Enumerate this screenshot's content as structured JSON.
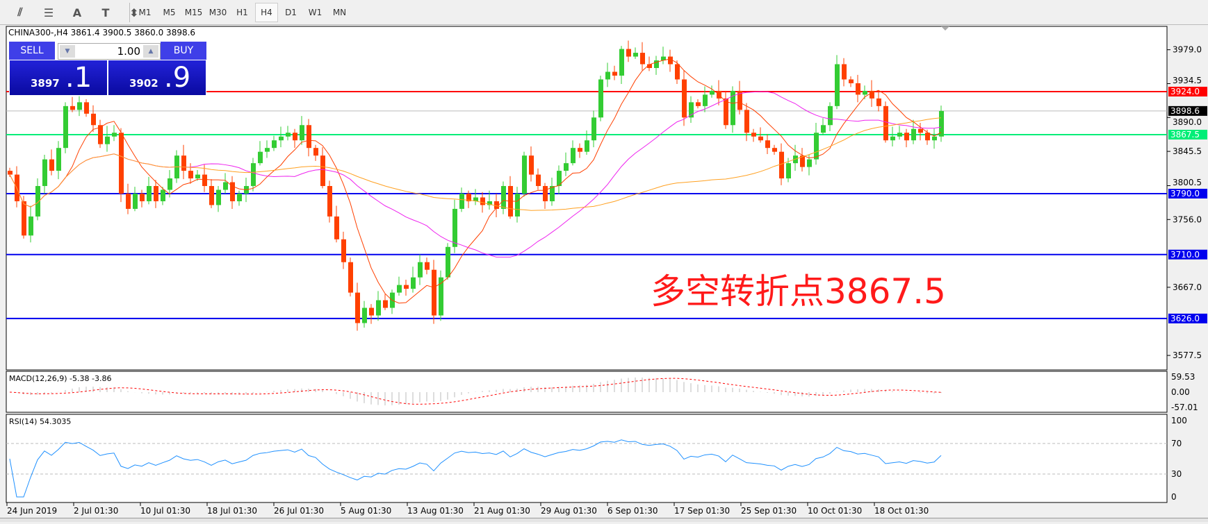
{
  "toolbar": {
    "icons": [
      "fibonacci-fan-icon",
      "fibonacci-levels-icon",
      "text-icon",
      "text-label-icon",
      "arrows-icon"
    ],
    "icon_glyphs": [
      "⫽",
      "☰",
      "A",
      "T",
      "⬍"
    ],
    "timeframes": [
      "M1",
      "M5",
      "M15",
      "M30",
      "H1",
      "H4",
      "D1",
      "W1",
      "MN"
    ],
    "active_timeframe": "H4"
  },
  "chart": {
    "title": "CHINA300-,H4  3861.4 3900.5 3860.0 3898.6",
    "sell_label": "SELL",
    "buy_label": "BUY",
    "lot": "1.00",
    "bid_main": "3897",
    "bid_big": ".1",
    "ask_main": "3902",
    "ask_big": ".9",
    "annotation": "多空转折点3867.5"
  },
  "chart_data": {
    "type": "candlestick",
    "symbol": "CHINA300-",
    "timeframe": "H4",
    "ylim": [
      3558.5,
      4009.7
    ],
    "price_ticks": [
      "3979.0",
      "3934.5",
      "3890.0",
      "3845.5",
      "3800.5",
      "3756.0",
      "3667.0",
      "3577.5"
    ],
    "levels": [
      {
        "value": "3924.0",
        "color": "#ff0000"
      },
      {
        "value": "3898.6",
        "color": "#000000",
        "kind": "current"
      },
      {
        "value": "3867.5",
        "color": "#00ee77"
      },
      {
        "value": "3790.0",
        "color": "#0000ee"
      },
      {
        "value": "3710.0",
        "color": "#0000ee"
      },
      {
        "value": "3626.0",
        "color": "#0000ee"
      }
    ],
    "colors": {
      "bull": "#33cc33",
      "bear": "#ff4000",
      "ma_fast": "#ff4000",
      "ma_mid": "#ee22ee",
      "ma_slow": "#ffa020",
      "rsi": "#1e90ff",
      "macd_signal": "#ff0000",
      "macd_hist": "#bbbbbb"
    },
    "closes": [
      3815,
      3780,
      3735,
      3760,
      3800,
      3835,
      3820,
      3850,
      3905,
      3900,
      3910,
      3895,
      3880,
      3855,
      3865,
      3870,
      3790,
      3770,
      3790,
      3780,
      3800,
      3780,
      3795,
      3810,
      3840,
      3820,
      3810,
      3815,
      3800,
      3775,
      3795,
      3805,
      3780,
      3790,
      3800,
      3830,
      3845,
      3850,
      3860,
      3865,
      3870,
      3860,
      3880,
      3850,
      3840,
      3800,
      3760,
      3730,
      3700,
      3660,
      3620,
      3640,
      3630,
      3650,
      3640,
      3660,
      3670,
      3665,
      3680,
      3700,
      3690,
      3630,
      3680,
      3720,
      3770,
      3790,
      3780,
      3785,
      3775,
      3780,
      3770,
      3800,
      3760,
      3790,
      3840,
      3815,
      3800,
      3780,
      3800,
      3820,
      3830,
      3850,
      3845,
      3860,
      3890,
      3940,
      3950,
      3945,
      3980,
      3970,
      3975,
      3960,
      3955,
      3965,
      3970,
      3960,
      3940,
      3890,
      3910,
      3905,
      3920,
      3925,
      3915,
      3880,
      3925,
      3900,
      3870,
      3865,
      3860,
      3850,
      3845,
      3810,
      3830,
      3840,
      3825,
      3835,
      3870,
      3880,
      3905,
      3960,
      3940,
      3935,
      3920,
      3925,
      3915,
      3905,
      3860,
      3865,
      3870,
      3860,
      3875,
      3870,
      3860,
      3865,
      3898.6
    ],
    "x_labels": [
      "24 Jun 2019",
      "2 Jul 01:30",
      "10 Jul 01:30",
      "18 Jul 01:30",
      "26 Jul 01:30",
      "5 Aug 01:30",
      "13 Aug 01:30",
      "21 Aug 01:30",
      "29 Aug 01:30",
      "6 Sep 01:30",
      "17 Sep 01:30",
      "25 Sep 01:30",
      "10 Oct 01:30",
      "18 Oct 01:30"
    ],
    "macd": {
      "label": "MACD(12,26,9) -5.38 -3.86",
      "ticks": [
        "59.53",
        "0.00",
        "-57.01"
      ]
    },
    "rsi": {
      "label": "RSI(14) 54.3035",
      "ticks": [
        "100",
        "70",
        "30",
        "0"
      ],
      "levels": [
        70,
        30
      ]
    }
  }
}
